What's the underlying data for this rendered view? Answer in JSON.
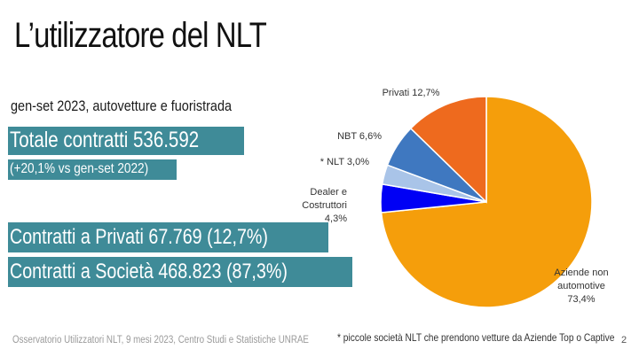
{
  "title": "L’utilizzatore del NLT",
  "subtitle": "gen-set 2023, autovetture e fuoristrada",
  "highlights": {
    "total": "Totale contratti 536.592",
    "variation": "(+20,1% vs  gen-set 2022)",
    "private": "Contratti a Privati  67.769 (12,7%)",
    "companies": "Contratti a Società 468.823 (87,3%)"
  },
  "footer": {
    "source": "Osservatorio Utilizzatori NLT, 9 mesi 2023, Centro Studi e Statistiche UNRAE",
    "footnote": "* piccole società NLT che prendono vetture da Aziende Top o Captive",
    "page": "2"
  },
  "colors": {
    "highlight_bg": "#3f8b98",
    "highlight_text": "#ffffff"
  },
  "chart_data": {
    "type": "pie",
    "title": "",
    "slices": [
      {
        "name": "Aziende non automotive",
        "value": 73.4,
        "label_lines": [
          "Aziende non",
          "automotive",
          "73,4%"
        ],
        "color": "#f59e0b"
      },
      {
        "name": "Dealer e Costruttori",
        "value": 4.3,
        "label_lines": [
          "Dealer e",
          "Costruttori",
          "4,3%"
        ],
        "color": "#0000f5"
      },
      {
        "name": "* NLT",
        "value": 3.0,
        "label_lines": [
          "* NLT 3,0%"
        ],
        "color": "#a9c4e8"
      },
      {
        "name": "NBT",
        "value": 6.6,
        "label_lines": [
          "NBT 6,6%"
        ],
        "color": "#3f78c0"
      },
      {
        "name": "Privati",
        "value": 12.7,
        "label_lines": [
          "Privati 12,7%"
        ],
        "color": "#ee6a1e"
      }
    ]
  }
}
